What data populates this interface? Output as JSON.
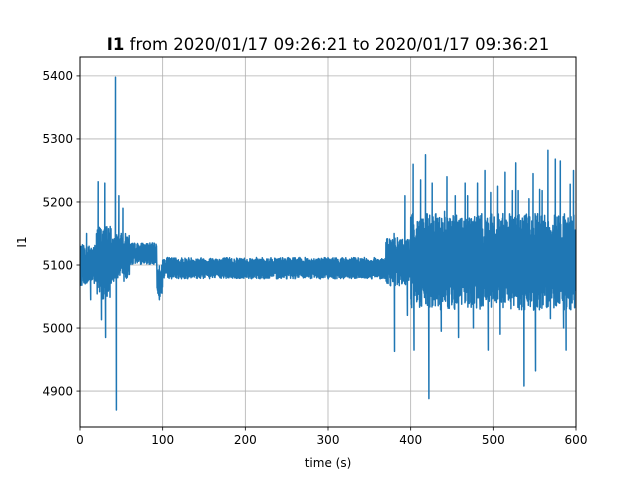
{
  "chart_data": {
    "type": "line",
    "title_bold": "I1",
    "title_rest": " from 2020/01/17 09:26:21 to 2020/01/17 09:36:21",
    "xlabel": "time (s)",
    "ylabel": "I1",
    "xlim": [
      0,
      600
    ],
    "ylim": [
      4843,
      5430
    ],
    "xticks": [
      0,
      100,
      200,
      300,
      400,
      500,
      600
    ],
    "yticks": [
      4900,
      5000,
      5100,
      5200,
      5300,
      5400
    ],
    "grid": true,
    "color": "#1f77b4",
    "series": [
      {
        "segments": [
          {
            "x_start": 0,
            "x_end": 20,
            "center": 5100,
            "amp": 38,
            "spikes": [
              [
                8,
                5150
              ],
              [
                13,
                5045
              ]
            ]
          },
          {
            "x_start": 20,
            "x_end": 38,
            "center": 5105,
            "amp": 70,
            "spikes": [
              [
                22,
                5232
              ],
              [
                26,
                5013
              ],
              [
                30,
                5230
              ],
              [
                31,
                4985
              ]
            ]
          },
          {
            "x_start": 38,
            "x_end": 60,
            "center": 5112,
            "amp": 45,
            "spikes": [
              [
                43,
                5398
              ],
              [
                44,
                4870
              ],
              [
                47,
                5210
              ],
              [
                52,
                5190
              ]
            ]
          },
          {
            "x_start": 60,
            "x_end": 93,
            "center": 5118,
            "amp": 20,
            "spikes": []
          },
          {
            "x_start": 93,
            "x_end": 100,
            "center": 5075,
            "amp": 30,
            "spikes": [
              [
                96,
                5045
              ]
            ]
          },
          {
            "x_start": 100,
            "x_end": 370,
            "center": 5095,
            "amp": 20,
            "spikes": []
          },
          {
            "x_start": 370,
            "x_end": 400,
            "center": 5105,
            "amp": 45,
            "spikes": [
              [
                380,
                5150
              ],
              [
                380.5,
                4963
              ],
              [
                393,
                5210
              ],
              [
                396,
                5020
              ]
            ]
          },
          {
            "x_start": 400,
            "x_end": 600,
            "center": 5105,
            "amp": 90,
            "spikes": [
              [
                403,
                5260
              ],
              [
                404,
                4965
              ],
              [
                412,
                5235
              ],
              [
                418,
                5275
              ],
              [
                422,
                4888
              ],
              [
                426,
                5230
              ],
              [
                428,
                5050
              ],
              [
                434,
                5060
              ],
              [
                437,
                4995
              ],
              [
                441,
                5185
              ],
              [
                444,
                5240
              ],
              [
                454,
                5210
              ],
              [
                458,
                4985
              ],
              [
                466,
                5230
              ],
              [
                469,
                5210
              ],
              [
                476,
                5000
              ],
              [
                481,
                5230
              ],
              [
                484,
                5030
              ],
              [
                490,
                5250
              ],
              [
                494,
                4965
              ],
              [
                497,
                5215
              ],
              [
                505,
                5225
              ],
              [
                508,
                4990
              ],
              [
                514,
                5247
              ],
              [
                523,
                5218
              ],
              [
                527,
                5262
              ],
              [
                530,
                5218
              ],
              [
                537,
                4908
              ],
              [
                543,
                5205
              ],
              [
                548,
                5245
              ],
              [
                551,
                4932
              ],
              [
                556,
                5220
              ],
              [
                559,
                5218
              ],
              [
                566,
                5282
              ],
              [
                569,
                5015
              ],
              [
                575,
                5268
              ],
              [
                581,
                5265
              ],
              [
                585,
                5000
              ],
              [
                588,
                4965
              ],
              [
                593,
                5228
              ],
              [
                597,
                5250
              ]
            ]
          }
        ]
      }
    ]
  }
}
